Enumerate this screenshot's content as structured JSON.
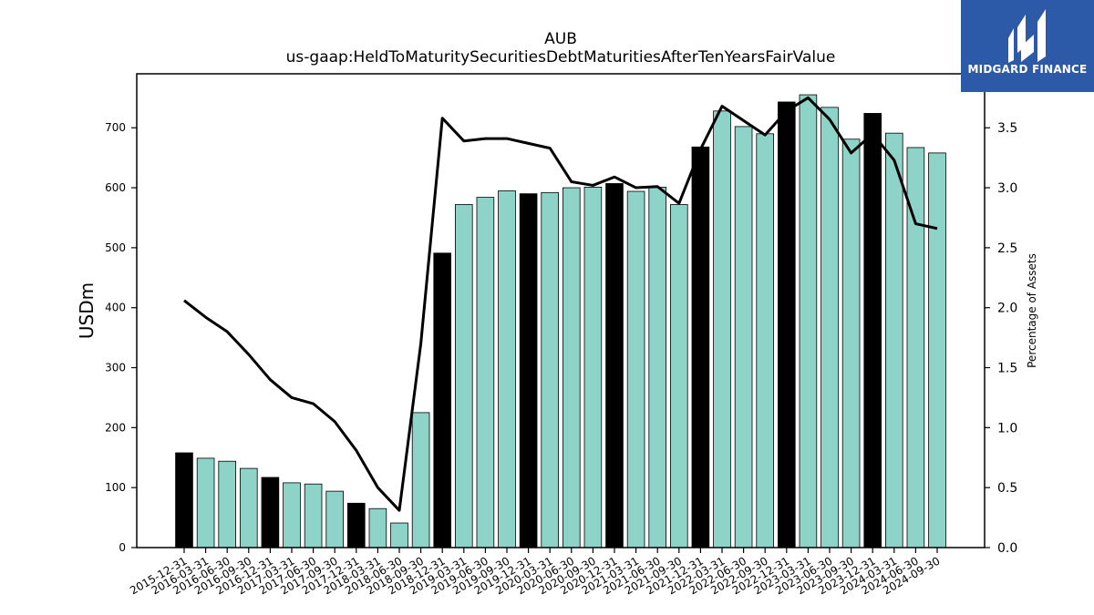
{
  "logo": {
    "text": "MIDGARD FINANCE",
    "icon": "midgard-logo-icon",
    "color": "#2c5aa8"
  },
  "chart_data": {
    "type": "bar",
    "title": "AUB",
    "subtitle": "us-gaap:HeldToMaturitySecuritiesDebtMaturitiesAfterTenYearsFairValue",
    "ylabel": "USDm",
    "ylabel_right": "Percentage of Assets",
    "ylim": [
      0,
      790
    ],
    "ylim_right": [
      0,
      3.95
    ],
    "yticks": [
      0,
      100,
      200,
      300,
      400,
      500,
      600,
      700
    ],
    "yticks_right": [
      0.0,
      0.5,
      1.0,
      1.5,
      2.0,
      2.5,
      3.0,
      3.5
    ],
    "grid": false,
    "bar_color": "#8dd3c7",
    "highlight_color": "#000000",
    "line_color": "#000000",
    "categories": [
      "2015-12-31",
      "2016-03-31",
      "2016-06-30",
      "2016-09-30",
      "2016-12-31",
      "2017-03-31",
      "2017-06-30",
      "2017-09-30",
      "2017-12-31",
      "2018-03-31",
      "2018-06-30",
      "2018-09-30",
      "2018-12-31",
      "2019-03-31",
      "2019-06-30",
      "2019-09-30",
      "2019-12-31",
      "2020-03-31",
      "2020-06-30",
      "2020-09-30",
      "2020-12-31",
      "2021-03-31",
      "2021-06-30",
      "2021-09-30",
      "2021-12-31",
      "2022-03-31",
      "2022-06-30",
      "2022-09-30",
      "2022-12-31",
      "2023-03-31",
      "2023-06-30",
      "2023-09-30",
      "2023-12-31",
      "2024-03-31",
      "2024-06-30",
      "2024-09-30"
    ],
    "series": [
      {
        "values": [
          158,
          149,
          144,
          132,
          117,
          108,
          106,
          94,
          74,
          65,
          41,
          225,
          491,
          572,
          584,
          595,
          590,
          592,
          600,
          601,
          607,
          594,
          601,
          572,
          668,
          728,
          702,
          690,
          743,
          755,
          734,
          681,
          724,
          691,
          667,
          658
        ]
      },
      {
        "axis": "right",
        "values": [
          2.06,
          1.92,
          1.8,
          1.61,
          1.4,
          1.25,
          1.2,
          1.05,
          0.81,
          0.5,
          0.31,
          1.7,
          3.58,
          3.39,
          3.41,
          3.41,
          3.37,
          3.33,
          3.05,
          3.02,
          3.09,
          3.0,
          3.01,
          2.87,
          3.32,
          3.68,
          3.56,
          3.44,
          3.64,
          3.75,
          3.57,
          3.29,
          3.45,
          3.23,
          2.7,
          2.66
        ]
      }
    ],
    "highlighted": [
      "2015-12-31",
      "2016-12-31",
      "2017-12-31",
      "2018-12-31",
      "2019-12-31",
      "2020-12-31",
      "2021-12-31",
      "2022-12-31",
      "2023-12-31"
    ]
  }
}
